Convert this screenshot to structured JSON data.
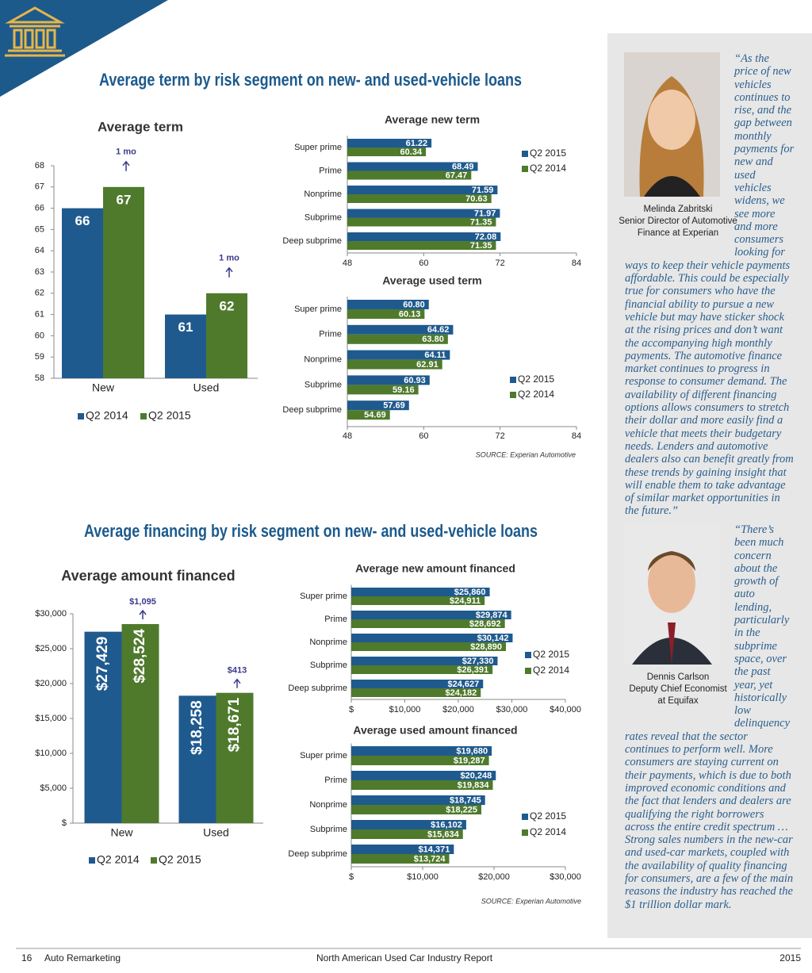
{
  "sections": [
    {
      "title": "Average term by risk segment on new- and used-vehicle loans"
    },
    {
      "title": "Average financing by risk segment on new- and used-vehicle loans"
    }
  ],
  "chart_data": [
    {
      "type": "bar",
      "title": "Average term",
      "categories": [
        "New",
        "Used"
      ],
      "series": [
        {
          "name": "Q2 2014",
          "color": "#1f5a8e",
          "values": [
            66,
            61
          ]
        },
        {
          "name": "Q2 2015",
          "color": "#4f7a2c",
          "values": [
            67,
            62
          ]
        }
      ],
      "ylim": [
        58,
        68
      ],
      "yticks": [
        58,
        59,
        60,
        61,
        62,
        63,
        64,
        65,
        66,
        67,
        68
      ],
      "annotations": [
        "1 mo",
        "1 mo"
      ],
      "legend": "bottom"
    },
    {
      "type": "hbar",
      "title": "Average new term",
      "categories": [
        "Super prime",
        "Prime",
        "Nonprime",
        "Subprime",
        "Deep subprime"
      ],
      "series": [
        {
          "name": "Q2 2015",
          "color": "#1f5a8e",
          "values": [
            61.22,
            68.49,
            71.59,
            71.97,
            72.08
          ]
        },
        {
          "name": "Q2 2014",
          "color": "#4f7a2c",
          "values": [
            60.34,
            67.47,
            70.63,
            71.35,
            71.35
          ]
        }
      ],
      "xlim": [
        48,
        84
      ],
      "xticks": [
        48,
        60,
        72,
        84
      ],
      "legend": "right"
    },
    {
      "type": "hbar",
      "title": "Average used term",
      "categories": [
        "Super prime",
        "Prime",
        "Nonprime",
        "Subprime",
        "Deep subprime"
      ],
      "series": [
        {
          "name": "Q2 2015",
          "color": "#1f5a8e",
          "values": [
            60.8,
            64.62,
            64.11,
            60.93,
            57.69
          ],
          "value_labels": [
            "60.80",
            "64.62",
            "64.11",
            "60.93",
            "57.69"
          ]
        },
        {
          "name": "Q2 2014",
          "color": "#4f7a2c",
          "values": [
            60.13,
            63.8,
            62.91,
            59.16,
            54.69
          ],
          "value_labels": [
            "60.13",
            "63.80",
            "62.91",
            "59.16",
            "54.69"
          ]
        }
      ],
      "xlim": [
        48,
        84
      ],
      "xticks": [
        48,
        60,
        72,
        84
      ],
      "legend": "right",
      "source": "SOURCE: Experian Automotive"
    },
    {
      "type": "bar",
      "title": "Average amount financed",
      "categories": [
        "New",
        "Used"
      ],
      "series": [
        {
          "name": "Q2 2014",
          "color": "#1f5a8e",
          "values": [
            27429,
            18258
          ],
          "value_labels": [
            "$27,429",
            "$18,258"
          ]
        },
        {
          "name": "Q2 2015",
          "color": "#4f7a2c",
          "values": [
            28524,
            18671
          ],
          "value_labels": [
            "$28,524",
            "$18,671"
          ]
        }
      ],
      "ylim": [
        0,
        30000
      ],
      "yticks": [
        {
          "value": 0,
          "label": "$"
        },
        {
          "value": 5000,
          "label": "$5,000"
        },
        {
          "value": 10000,
          "label": "$10,000"
        },
        {
          "value": 15000,
          "label": "$15,000"
        },
        {
          "value": 20000,
          "label": "$20,000"
        },
        {
          "value": 25000,
          "label": "$25,000"
        },
        {
          "value": 30000,
          "label": "$30,000"
        }
      ],
      "annotations": [
        "$1,095",
        "$413"
      ],
      "legend": "bottom"
    },
    {
      "type": "hbar",
      "title": "Average new amount financed",
      "categories": [
        "Super prime",
        "Prime",
        "Nonprime",
        "Subprime",
        "Deep subprime"
      ],
      "series": [
        {
          "name": "Q2 2015",
          "color": "#1f5a8e",
          "values": [
            25860,
            29874,
            30142,
            27330,
            24627
          ],
          "value_labels": [
            "$25,860",
            "$29,874",
            "$30,142",
            "$27,330",
            "$24,627"
          ]
        },
        {
          "name": "Q2 2014",
          "color": "#4f7a2c",
          "values": [
            24911,
            28692,
            28890,
            26391,
            24182
          ],
          "value_labels": [
            "$24,911",
            "$28,692",
            "$28,890",
            "$26,391",
            "$24,182"
          ]
        }
      ],
      "xlim": [
        0,
        40000
      ],
      "xticks": [
        {
          "value": 0,
          "label": "$"
        },
        {
          "value": 10000,
          "label": "$10,000"
        },
        {
          "value": 20000,
          "label": "$20,000"
        },
        {
          "value": 30000,
          "label": "$30,000"
        },
        {
          "value": 40000,
          "label": "$40,000"
        }
      ],
      "legend": "right"
    },
    {
      "type": "hbar",
      "title": "Average used amount financed",
      "categories": [
        "Super prime",
        "Prime",
        "Nonprime",
        "Subprime",
        "Deep subprime"
      ],
      "series": [
        {
          "name": "Q2 2015",
          "color": "#1f5a8e",
          "values": [
            19680,
            20248,
            18745,
            16102,
            14371
          ],
          "value_labels": [
            "$19,680",
            "$20,248",
            "$18,745",
            "$16,102",
            "$14,371"
          ]
        },
        {
          "name": "Q2 2014",
          "color": "#4f7a2c",
          "values": [
            19287,
            19834,
            18225,
            15634,
            13724
          ],
          "value_labels": [
            "$19,287",
            "$19,834",
            "$18,225",
            "$15,634",
            "$13,724"
          ]
        }
      ],
      "xlim": [
        0,
        30000
      ],
      "xticks": [
        {
          "value": 0,
          "label": "$"
        },
        {
          "value": 10000,
          "label": "$10,000"
        },
        {
          "value": 20000,
          "label": "$20,000"
        },
        {
          "value": 30000,
          "label": "$30,000"
        }
      ],
      "legend": "right",
      "source": "SOURCE: Experian Automotive"
    }
  ],
  "quotes": [
    {
      "text": "“As the price of new vehicles continues to rise, and the gap between monthly payments for new and used vehicles widens, we see more and more consumers looking for ways to keep their vehicle payments affordable. This could be especially true for consumers who have the financial ability to pursue a new vehicle but may have sticker shock at the rising prices and don’t want the accompanying high monthly payments. The automotive finance market continues to progress in response to consumer demand. The availability of different financing options allows consumers to stretch their dollar and more easily find a vehicle that meets their budgetary needs. Lenders and automotive dealers also can benefit greatly from these trends by gaining insight that will enable them to take advantage of similar market opportunities in the future.”",
      "caption_lines": [
        "Melinda Zabritski",
        "Senior Director of Automotive",
        "Finance at Experian"
      ]
    },
    {
      "text": "“There’s been much concern about the growth of auto lending, particularly in the subprime space, over the past year, yet historically low delinquency rates reveal that the sector continues to perform well. More consumers are staying current on their payments, which is due to both improved economic conditions and the fact that lenders and dealers are qualifying the right borrowers across the entire credit spectrum … Strong sales numbers in the new-car and used-car markets, coupled with the availability of quality financing for consumers, are a few of the main reasons the industry has reached the $1 trillion dollar mark.",
      "caption_lines": [
        "Dennis Carlson",
        "Deputy Chief Economist",
        "at Equifax"
      ]
    }
  ],
  "footer": {
    "page": "16",
    "publication": "Auto Remarketing",
    "report": "North American Used Car Industry Report",
    "year": "2015"
  }
}
